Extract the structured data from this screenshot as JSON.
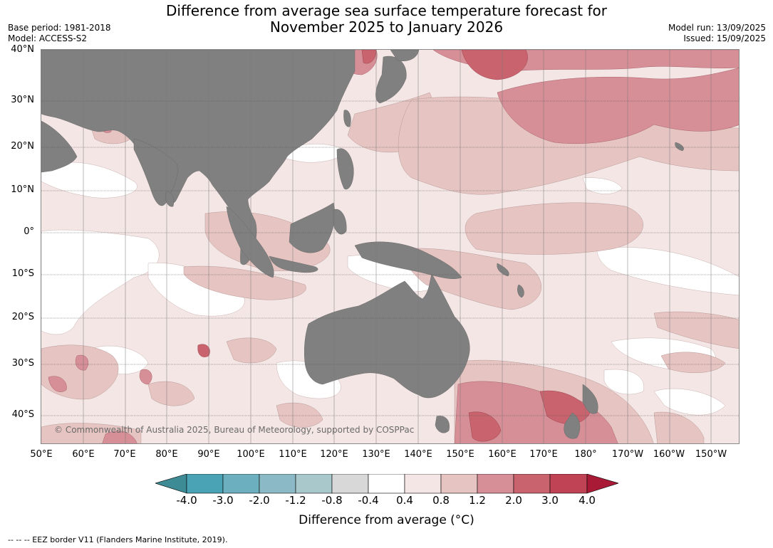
{
  "title_line1": "Difference from average sea surface temperature forecast for",
  "title_line2": "November 2025 to January 2026",
  "meta_left": [
    "Base period: 1981-2018",
    "Model: ACCESS-S2"
  ],
  "meta_right": [
    "Model run: 13/09/2025",
    "Issued: 15/09/2025"
  ],
  "lat_labels": [
    "40°N",
    "30°N",
    "20°N",
    "10°N",
    "0°",
    "10°S",
    "20°S",
    "30°S",
    "40°S"
  ],
  "lon_labels": [
    "50°E",
    "60°E",
    "70°E",
    "80°E",
    "90°E",
    "100°E",
    "110°E",
    "120°E",
    "130°E",
    "140°E",
    "150°E",
    "160°E",
    "170°E",
    "180°",
    "170°W",
    "160°W",
    "150°W"
  ],
  "copyright": "© Commonwealth of Australia 2025, Bureau of Meteorology, supported by COSPPac",
  "colorbar": {
    "ticks": [
      "-4.0",
      "-3.0",
      "-2.0",
      "-1.2",
      "-0.8",
      "-0.4",
      "0.4",
      "0.8",
      "1.2",
      "2.0",
      "3.0",
      "4.0"
    ],
    "colors": [
      "#3d8b94",
      "#4aa3b4",
      "#6cafbe",
      "#8bb9c5",
      "#a8c8cc",
      "#d8d8d8",
      "#ffffff",
      "#f4e6e5",
      "#e6c4c1",
      "#d68f97",
      "#c9636d",
      "#bf4354",
      "#a81a35"
    ],
    "title": "Difference from average ($^\\circ$C)",
    "title_display": "Difference from average (°C)"
  },
  "footnote": "--  --  -- EEZ border V11 (Flanders Marine Institute, 2019).",
  "colors": {
    "land": "#808080",
    "anom_0_4_0_8": "#f4e6e5",
    "anom_0_8_1_2": "#e6c4c1",
    "anom_1_2_2_0": "#d68f97",
    "anom_2_0_3_0": "#c9636d",
    "near_zero": "#ffffff"
  }
}
